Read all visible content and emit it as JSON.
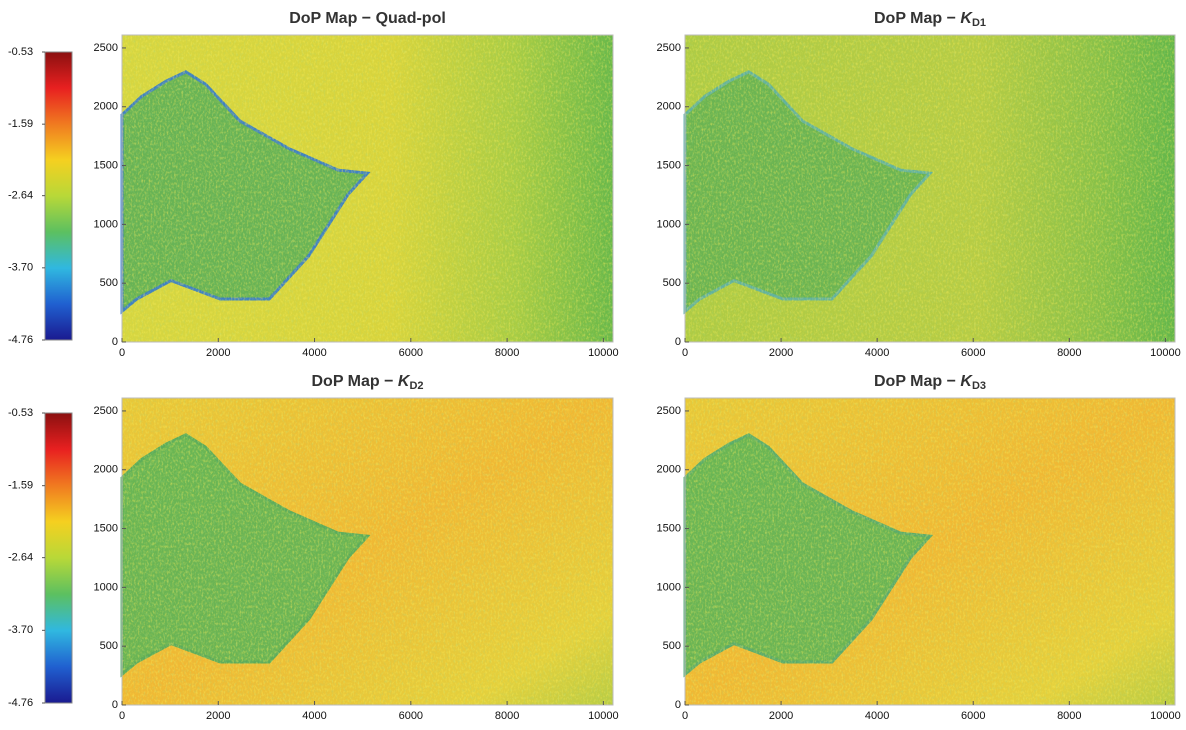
{
  "chart_data": [
    {
      "type": "heatmap",
      "title": "DoP Map  − Quad-pol",
      "xlim": [
        0,
        10200
      ],
      "xticks": [
        0,
        2000,
        4000,
        6000,
        8000,
        10000
      ],
      "ylim": [
        0,
        2610
      ],
      "yticks": [
        0,
        500,
        1000,
        1500,
        2000,
        2500
      ],
      "colorbar": {
        "clim": [
          -4.76,
          -0.53
        ],
        "ticks": [
          -0.53,
          -1.59,
          -2.64,
          {
            "value": -3.7,
            "label": "-3.70"
          },
          -4.76
        ],
        "colors": [
          "#8b1010",
          "#e82020",
          "#f07a20",
          "#f5d020",
          "#b8d838",
          "#5cc060",
          "#30b8e0",
          "#2060d0",
          "#1a1a90"
        ]
      }
    },
    {
      "type": "heatmap",
      "title": "DoP Map  − ",
      "title_symbol": "K",
      "title_subscript": "D1",
      "xlim": [
        0,
        10200
      ],
      "xticks": [
        0,
        2000,
        4000,
        6000,
        8000,
        10000
      ],
      "ylim": [
        0,
        2610
      ],
      "yticks": [
        0,
        500,
        1000,
        1500,
        2000,
        2500
      ]
    },
    {
      "type": "heatmap",
      "title": "DoP Map  − ",
      "title_symbol": "K",
      "title_subscript": "D2",
      "xlim": [
        0,
        10200
      ],
      "xticks": [
        0,
        2000,
        4000,
        6000,
        8000,
        10000
      ],
      "ylim": [
        0,
        2610
      ],
      "yticks": [
        0,
        500,
        1000,
        1500,
        2000,
        2500
      ],
      "colorbar": {
        "clim": [
          -4.76,
          -0.53
        ],
        "ticks": [
          -0.53,
          -1.59,
          -2.64,
          {
            "value": -3.7,
            "label": "-3.70"
          },
          -4.76
        ],
        "colors": [
          "#8b1010",
          "#e82020",
          "#f07a20",
          "#f5d020",
          "#b8d838",
          "#5cc060",
          "#30b8e0",
          "#2060d0",
          "#1a1a90"
        ]
      }
    },
    {
      "type": "heatmap",
      "title": "DoP Map  − ",
      "title_symbol": "K",
      "title_subscript": "D3",
      "xlim": [
        0,
        10200
      ],
      "xticks": [
        0,
        2000,
        4000,
        6000,
        8000,
        10000
      ],
      "ylim": [
        0,
        2610
      ],
      "yticks": [
        0,
        500,
        1000,
        1500,
        2000,
        2500
      ]
    }
  ]
}
